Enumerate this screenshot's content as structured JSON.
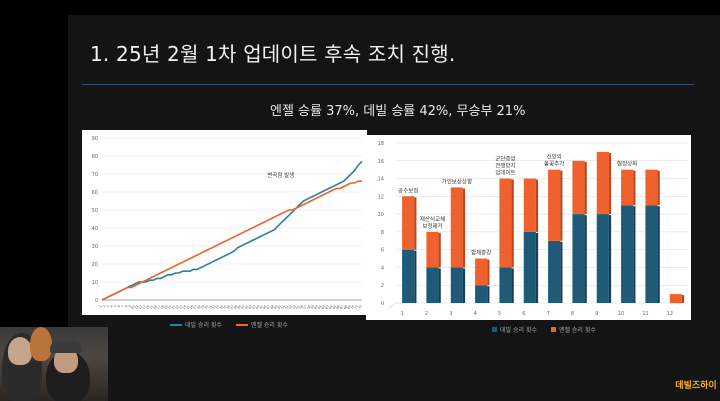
{
  "slide": {
    "title": "1. 25년 2월 1차 업데이트 후속 조치 진행.",
    "subtitle": "엔젤 승률 37%, 데빌 승률 42%, 무승부 21%"
  },
  "logo": {
    "text": "데빌즈하이"
  },
  "chart_data": [
    {
      "type": "line",
      "ylim": [
        0,
        90
      ],
      "yticks": [
        0,
        10,
        20,
        30,
        40,
        50,
        60,
        70,
        80,
        90
      ],
      "x": [
        1,
        2,
        3,
        4,
        5,
        6,
        7,
        8,
        9,
        10,
        11,
        12,
        13,
        14,
        15,
        16,
        17,
        18,
        19,
        20,
        21,
        22,
        23,
        24,
        25,
        26,
        27,
        28,
        29,
        30,
        31,
        32,
        33,
        34,
        35,
        36,
        37,
        38,
        39,
        40,
        41,
        42,
        43,
        44,
        45,
        46,
        47,
        48,
        49,
        50,
        51,
        52,
        53,
        54,
        55,
        56,
        57,
        58,
        59,
        60,
        61,
        62,
        63,
        64,
        65,
        66,
        67,
        68,
        69,
        70,
        71,
        72
      ],
      "series": [
        {
          "name": "데빌 승리 횟수",
          "color": "#2e7ea3",
          "values": [
            0,
            1,
            2,
            3,
            4,
            5,
            6,
            7,
            8,
            9,
            10,
            10,
            10,
            11,
            11,
            12,
            12,
            13,
            14,
            14,
            15,
            15,
            16,
            16,
            16,
            17,
            17,
            18,
            19,
            20,
            21,
            22,
            23,
            24,
            25,
            26,
            27,
            29,
            30,
            31,
            32,
            33,
            34,
            35,
            36,
            37,
            38,
            39,
            41,
            43,
            45,
            47,
            49,
            51,
            53,
            55,
            56,
            57,
            58,
            59,
            60,
            61,
            62,
            63,
            64,
            65,
            66,
            68,
            70,
            72,
            75,
            77
          ]
        },
        {
          "name": "엔젤 승리 횟수",
          "color": "#f0622d",
          "values": [
            0,
            1,
            2,
            3,
            4,
            5,
            6,
            7,
            7,
            8,
            9,
            10,
            11,
            12,
            13,
            14,
            15,
            16,
            17,
            18,
            19,
            20,
            21,
            22,
            23,
            24,
            25,
            26,
            27,
            28,
            29,
            30,
            31,
            32,
            33,
            34,
            35,
            36,
            37,
            38,
            39,
            40,
            41,
            42,
            43,
            44,
            45,
            46,
            47,
            48,
            49,
            50,
            50,
            51,
            52,
            53,
            54,
            55,
            56,
            57,
            58,
            59,
            60,
            61,
            62,
            62,
            63,
            64,
            65,
            65,
            66,
            66
          ]
        }
      ],
      "annotations": [
        {
          "text": "변곡점 발생",
          "x": 52,
          "y": 66
        }
      ]
    },
    {
      "type": "bar",
      "stacked": true,
      "categories": [
        "1",
        "2",
        "3",
        "4",
        "5",
        "6",
        "7",
        "8",
        "9",
        "10",
        "11",
        "12"
      ],
      "ylim": [
        0,
        18
      ],
      "yticks": [
        0,
        2,
        4,
        6,
        8,
        10,
        12,
        14,
        16,
        18
      ],
      "series": [
        {
          "name": "데빌 승리 횟수",
          "color": "#1f5a78",
          "values": [
            6,
            4,
            4,
            2,
            4,
            8,
            7,
            10,
            10,
            11,
            11,
            0
          ]
        },
        {
          "name": "엔젤 승리 횟수",
          "color": "#f0622d",
          "values": [
            6,
            4,
            9,
            3,
            10,
            6,
            8,
            6,
            7,
            4,
            4,
            1
          ]
        }
      ],
      "annotations": [
        {
          "text": "공수보정",
          "category": 1
        },
        {
          "text": "재산식교체",
          "category": 2
        },
        {
          "text": "보정제거",
          "category": 2
        },
        {
          "text": "가인보상상향",
          "category": 3
        },
        {
          "text": "합체증강",
          "category": 4
        },
        {
          "text": "군단증업",
          "category": 5
        },
        {
          "text": "전쟁방지",
          "category": 5
        },
        {
          "text": "업데이트",
          "category": 5
        },
        {
          "text": "신앙의",
          "category": 7
        },
        {
          "text": "불꽃추가",
          "category": 7
        },
        {
          "text": "협정상화",
          "category": 10
        }
      ]
    }
  ]
}
